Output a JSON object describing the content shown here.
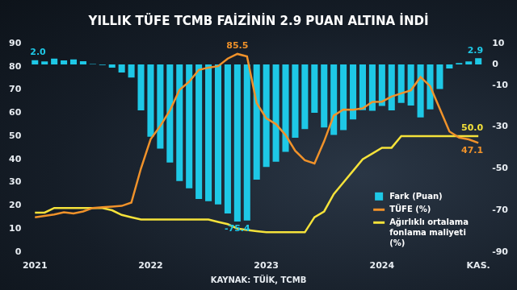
{
  "chart_data": {
    "type": "bar",
    "title": "YILLIK TÜFE TCMB FAİZİNİN 2.9 PUAN ALTINA İNDİ",
    "source": "KAYNAK: TÜİK, TCMB",
    "categories": [
      "2021",
      null,
      null,
      null,
      null,
      null,
      null,
      null,
      null,
      null,
      null,
      null,
      "2022",
      null,
      null,
      null,
      null,
      null,
      null,
      null,
      null,
      null,
      null,
      null,
      "2023",
      null,
      null,
      null,
      null,
      null,
      null,
      null,
      null,
      null,
      null,
      null,
      "2024",
      null,
      null,
      null,
      null,
      null,
      null,
      null,
      null,
      null,
      "KAS."
    ],
    "series": [
      {
        "name": "Fark (Puan)",
        "type": "bar",
        "color": "#1ec8e6",
        "axis": "y2",
        "values": [
          2.0,
          1.4,
          2.8,
          1.9,
          2.4,
          1.5,
          0.1,
          -0.3,
          -1.6,
          -3.9,
          -6.3,
          -22.1,
          -34.7,
          -40.4,
          -47.1,
          -56.0,
          -59.5,
          -64.6,
          -65.6,
          -67.2,
          -71.5,
          -75.4,
          -74.9,
          -55.3,
          -49.2,
          -46.7,
          -42.0,
          -35.2,
          -31.1,
          -23.2,
          -30.3,
          -33.9,
          -31.5,
          -26.4,
          -22.0,
          -22.3,
          -19.9,
          -22.1,
          -18.5,
          -19.8,
          -25.5,
          -21.6,
          -11.8,
          -2.0,
          0.6,
          1.4,
          2.9
        ]
      },
      {
        "name": "TÜFE (%)",
        "type": "line",
        "color": "#f0922a",
        "values": [
          15.0,
          15.6,
          16.2,
          17.1,
          16.6,
          17.5,
          19.0,
          19.3,
          19.6,
          19.9,
          21.3,
          36.1,
          48.7,
          54.4,
          61.1,
          70.0,
          73.5,
          78.6,
          79.6,
          80.2,
          83.5,
          85.5,
          84.4,
          64.3,
          57.7,
          55.2,
          50.5,
          43.7,
          39.6,
          38.2,
          47.8,
          58.9,
          61.5,
          61.4,
          62.0,
          64.8,
          64.9,
          67.1,
          68.5,
          69.8,
          75.5,
          71.6,
          61.8,
          52.0,
          49.4,
          48.6,
          47.1
        ]
      },
      {
        "name": "Ağırlıklı ortalama fonlama maliyeti (%)",
        "type": "line",
        "color": "#f5e23a",
        "values": [
          17.0,
          17.0,
          19.0,
          19.0,
          19.0,
          19.0,
          19.0,
          19.0,
          18.0,
          16.0,
          15.0,
          14.0,
          14.0,
          14.0,
          14.0,
          14.0,
          14.0,
          14.0,
          14.0,
          13.0,
          12.0,
          10.1,
          9.5,
          9.0,
          8.5,
          8.5,
          8.5,
          8.5,
          8.5,
          15.0,
          17.5,
          25.0,
          30.0,
          35.0,
          40.0,
          42.5,
          45.0,
          45.0,
          50.0,
          50.0,
          50.0,
          50.0,
          50.0,
          50.0,
          50.0,
          50.0,
          50.0
        ]
      }
    ],
    "ylim": [
      0,
      90
    ],
    "yticks": [
      0,
      10,
      20,
      30,
      40,
      50,
      60,
      70,
      80,
      90
    ],
    "y2lim": [
      -90,
      10
    ],
    "y2ticks": [
      10,
      0,
      -10,
      -30,
      -50,
      -70,
      -90
    ],
    "grid": false,
    "legend": "lower right",
    "annotations": [
      {
        "text": "2.0",
        "series": "Fark (Puan)",
        "index": 0
      },
      {
        "text": "-75.4",
        "series": "Fark (Puan)",
        "index": 21
      },
      {
        "text": "2.9",
        "series": "Fark (Puan)",
        "index": 46
      },
      {
        "text": "85.5",
        "series": "TÜFE (%)",
        "index": 21
      },
      {
        "text": "47.1",
        "series": "TÜFE (%)",
        "index": 46
      },
      {
        "text": "50.0",
        "series": "Ağırlıklı ortalama fonlama maliyeti (%)",
        "index": 46
      }
    ]
  }
}
